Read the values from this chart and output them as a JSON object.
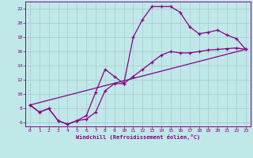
{
  "xlabel": "Windchill (Refroidissement éolien,°C)",
  "bg_color": "#c0e8e8",
  "grid_color": "#a8d0d0",
  "line_color": "#880088",
  "xlim": [
    -0.5,
    23.5
  ],
  "ylim": [
    5.5,
    23.0
  ],
  "xticks": [
    0,
    1,
    2,
    3,
    4,
    5,
    6,
    7,
    8,
    9,
    10,
    11,
    12,
    13,
    14,
    15,
    16,
    17,
    18,
    19,
    20,
    21,
    22,
    23
  ],
  "yticks": [
    6,
    8,
    10,
    12,
    14,
    16,
    18,
    20,
    22
  ],
  "curve1_x": [
    0,
    1,
    2,
    3,
    4,
    5,
    6,
    7,
    8,
    9,
    10,
    11,
    12,
    13,
    14,
    15,
    16,
    17,
    18,
    19,
    20,
    21,
    22,
    23
  ],
  "curve1_y": [
    8.5,
    7.5,
    8.0,
    6.3,
    5.8,
    6.3,
    6.5,
    7.5,
    10.5,
    11.5,
    11.5,
    18.0,
    20.5,
    22.3,
    22.3,
    22.3,
    21.5,
    19.5,
    18.5,
    18.7,
    19.0,
    18.3,
    17.8,
    16.3
  ],
  "curve2_x": [
    0,
    1,
    2,
    3,
    4,
    5,
    6,
    7,
    8,
    9,
    10,
    11,
    12,
    13,
    14,
    15,
    16,
    17,
    18,
    19,
    20,
    21,
    22,
    23
  ],
  "curve2_y": [
    8.5,
    7.5,
    8.0,
    6.3,
    5.8,
    6.3,
    7.0,
    10.3,
    13.5,
    12.5,
    11.5,
    12.5,
    13.5,
    14.5,
    15.5,
    16.0,
    15.8,
    15.8,
    16.0,
    16.2,
    16.3,
    16.4,
    16.5,
    16.3
  ],
  "curve3_x": [
    0,
    23
  ],
  "curve3_y": [
    8.5,
    16.3
  ]
}
